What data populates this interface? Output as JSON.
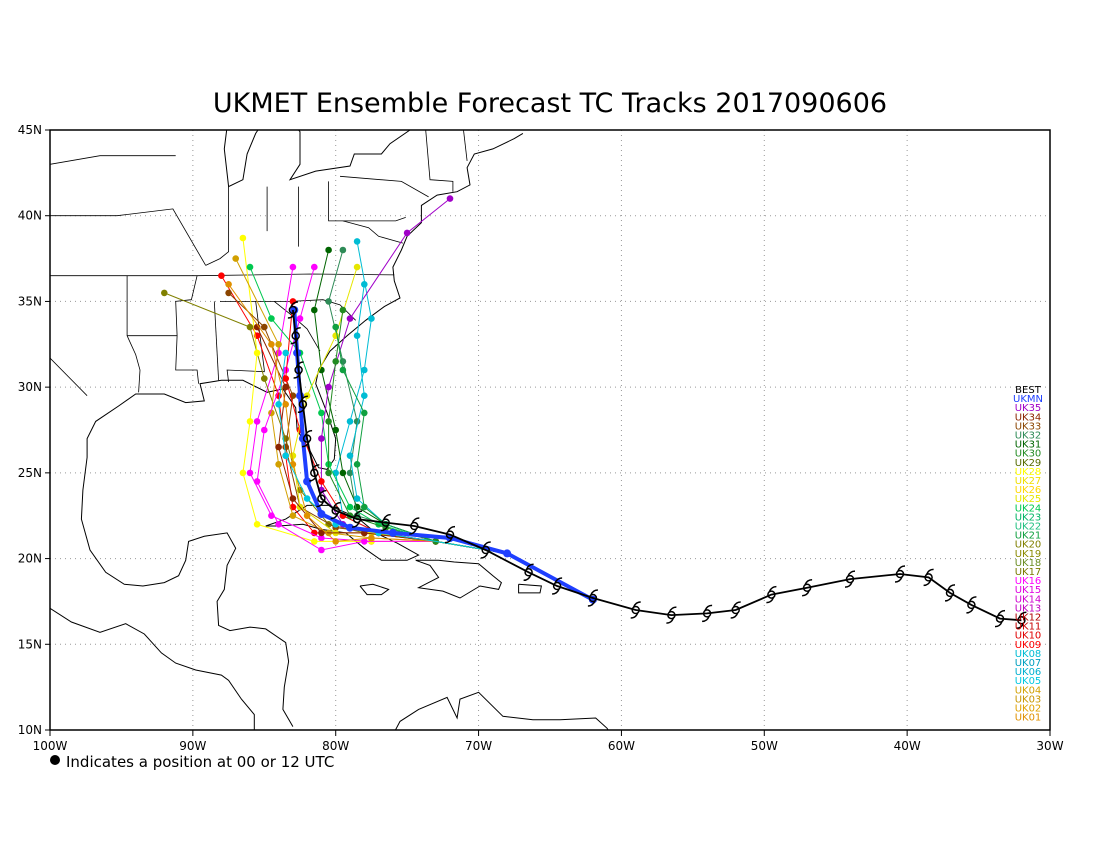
{
  "title": "UKMET Ensemble Forecast TC Tracks 2017090606",
  "footnote": "Indicates a position at 00 or 12 UTC",
  "map": {
    "lon_range": [
      -100,
      -30
    ],
    "lat_range": [
      10,
      45
    ],
    "lon_ticks": [
      {
        "value": -100,
        "label": "100W"
      },
      {
        "value": -90,
        "label": "90W"
      },
      {
        "value": -80,
        "label": "80W"
      },
      {
        "value": -70,
        "label": "70W"
      },
      {
        "value": -60,
        "label": "60W"
      },
      {
        "value": -50,
        "label": "50W"
      },
      {
        "value": -40,
        "label": "40W"
      },
      {
        "value": -30,
        "label": "30W"
      }
    ],
    "lat_ticks": [
      {
        "value": 10,
        "label": "10N"
      },
      {
        "value": 15,
        "label": "15N"
      },
      {
        "value": 20,
        "label": "20N"
      },
      {
        "value": 25,
        "label": "25N"
      },
      {
        "value": 30,
        "label": "30N"
      },
      {
        "value": 35,
        "label": "35N"
      },
      {
        "value": 40,
        "label": "40N"
      },
      {
        "value": 45,
        "label": "45N"
      }
    ],
    "grid": "dotted"
  },
  "legend": [
    {
      "label": "BEST",
      "color": "#000000"
    },
    {
      "label": "UKMN",
      "color": "#1f3fff"
    },
    {
      "label": "UK35",
      "color": "#a000c8"
    },
    {
      "label": "UK34",
      "color": "#8b2500"
    },
    {
      "label": "UK33",
      "color": "#8b4500"
    },
    {
      "label": "UK32",
      "color": "#2e8b57"
    },
    {
      "label": "UK31",
      "color": "#006400"
    },
    {
      "label": "UK30",
      "color": "#228b22"
    },
    {
      "label": "UK29",
      "color": "#556b00"
    },
    {
      "label": "UK28",
      "color": "#ffff00"
    },
    {
      "label": "UK27",
      "color": "#f0e000"
    },
    {
      "label": "UK26",
      "color": "#ffd700"
    },
    {
      "label": "UK25",
      "color": "#e6e600"
    },
    {
      "label": "UK24",
      "color": "#00c850"
    },
    {
      "label": "UK23",
      "color": "#00b464"
    },
    {
      "label": "UK22",
      "color": "#20c080"
    },
    {
      "label": "UK21",
      "color": "#10a040"
    },
    {
      "label": "UK20",
      "color": "#808000"
    },
    {
      "label": "UK19",
      "color": "#8a8a00"
    },
    {
      "label": "UK18",
      "color": "#6b8e23"
    },
    {
      "label": "UK17",
      "color": "#7a7a00"
    },
    {
      "label": "UK16",
      "color": "#ff00ff"
    },
    {
      "label": "UK15",
      "color": "#e000e0"
    },
    {
      "label": "UK14",
      "color": "#d000d0"
    },
    {
      "label": "UK13",
      "color": "#c000c0"
    },
    {
      "label": "UK12",
      "color": "#b00000"
    },
    {
      "label": "UK11",
      "color": "#c80000"
    },
    {
      "label": "UK10",
      "color": "#e00000"
    },
    {
      "label": "UK09",
      "color": "#ff0000"
    },
    {
      "label": "UK08",
      "color": "#00bcd4"
    },
    {
      "label": "UK07",
      "color": "#00a0c0"
    },
    {
      "label": "UK06",
      "color": "#00b0d0"
    },
    {
      "label": "UK05",
      "color": "#00c8e0"
    },
    {
      "label": "UK04",
      "color": "#d2a000"
    },
    {
      "label": "UK03",
      "color": "#c89600"
    },
    {
      "label": "UK02",
      "color": "#e0a000"
    },
    {
      "label": "UK01",
      "color": "#e09000"
    }
  ],
  "best_track": [
    [
      -32.0,
      16.4
    ],
    [
      -33.5,
      16.5
    ],
    [
      -35.5,
      17.3
    ],
    [
      -37.0,
      18.0
    ],
    [
      -38.5,
      18.9
    ],
    [
      -40.5,
      19.1
    ],
    [
      -44.0,
      18.8
    ],
    [
      -47.0,
      18.3
    ],
    [
      -49.5,
      17.9
    ],
    [
      -52.0,
      17.0
    ],
    [
      -54.0,
      16.8
    ],
    [
      -56.5,
      16.7
    ],
    [
      -59.0,
      17.0
    ],
    [
      -62.0,
      17.7
    ],
    [
      -64.5,
      18.4
    ],
    [
      -66.5,
      19.2
    ],
    [
      -69.5,
      20.5
    ],
    [
      -72.0,
      21.4
    ],
    [
      -74.5,
      21.9
    ],
    [
      -76.5,
      22.1
    ],
    [
      -78.5,
      22.3
    ],
    [
      -80.0,
      22.8
    ],
    [
      -81.0,
      23.5
    ],
    [
      -81.5,
      25.0
    ],
    [
      -82.0,
      27.0
    ],
    [
      -82.3,
      29.0
    ],
    [
      -82.6,
      31.0
    ],
    [
      -82.8,
      33.0
    ],
    [
      -83.0,
      34.5
    ]
  ],
  "ensemble": {
    "start": [
      -62.0,
      17.6
    ],
    "hub": [
      -68.0,
      20.3
    ],
    "branch": [
      -73.0,
      21.0
    ],
    "members": [
      {
        "color": "#ff0000",
        "track": [
          [
            -78.0,
            21.5
          ],
          [
            -81.5,
            21.5
          ],
          [
            -83.0,
            23.0
          ],
          [
            -83.5,
            26.0
          ],
          [
            -84.0,
            29.5
          ],
          [
            -85.5,
            33.0
          ],
          [
            -88.0,
            36.5
          ]
        ]
      },
      {
        "color": "#ff00ff",
        "track": [
          [
            -77.5,
            21.0
          ],
          [
            -81.0,
            21.2
          ],
          [
            -84.5,
            22.5
          ],
          [
            -86.0,
            25.0
          ],
          [
            -85.5,
            28.0
          ],
          [
            -84.0,
            32.0
          ],
          [
            -83.0,
            37.0
          ]
        ]
      },
      {
        "color": "#808000",
        "track": [
          [
            -78.0,
            21.5
          ],
          [
            -80.5,
            22.0
          ],
          [
            -82.5,
            24.0
          ],
          [
            -83.5,
            27.0
          ],
          [
            -85.0,
            30.5
          ],
          [
            -86.0,
            33.5
          ],
          [
            -92.0,
            35.5
          ]
        ]
      },
      {
        "color": "#ffff00",
        "track": [
          [
            -77.5,
            21.0
          ],
          [
            -81.5,
            21.0
          ],
          [
            -85.5,
            22.0
          ],
          [
            -86.5,
            25.0
          ],
          [
            -86.0,
            28.0
          ],
          [
            -85.5,
            32.0
          ],
          [
            -86.5,
            38.7
          ]
        ]
      },
      {
        "color": "#00bcd4",
        "track": [
          [
            -77.0,
            21.5
          ],
          [
            -79.5,
            22.5
          ],
          [
            -80.0,
            25.0
          ],
          [
            -79.0,
            28.0
          ],
          [
            -78.0,
            31.0
          ],
          [
            -77.5,
            34.0
          ],
          [
            -78.5,
            38.5
          ]
        ]
      },
      {
        "color": "#00c850",
        "track": [
          [
            -77.0,
            22.0
          ],
          [
            -79.0,
            23.0
          ],
          [
            -80.5,
            25.5
          ],
          [
            -81.0,
            28.5
          ],
          [
            -82.5,
            32.0
          ],
          [
            -84.5,
            34.0
          ],
          [
            -86.0,
            37.0
          ]
        ]
      },
      {
        "color": "#006400",
        "track": [
          [
            -76.5,
            22.0
          ],
          [
            -78.5,
            23.0
          ],
          [
            -79.5,
            25.0
          ],
          [
            -80.0,
            27.5
          ],
          [
            -81.0,
            31.0
          ],
          [
            -81.5,
            34.5
          ],
          [
            -80.5,
            38.0
          ]
        ]
      },
      {
        "color": "#8b4500",
        "track": [
          [
            -77.0,
            21.5
          ],
          [
            -80.0,
            21.8
          ],
          [
            -82.5,
            23.0
          ],
          [
            -83.5,
            26.5
          ],
          [
            -83.0,
            29.5
          ],
          [
            -85.0,
            33.5
          ],
          [
            -87.5,
            35.5
          ]
        ]
      },
      {
        "color": "#d2a000",
        "track": [
          [
            -77.5,
            21.2
          ],
          [
            -80.5,
            21.5
          ],
          [
            -83.0,
            22.5
          ],
          [
            -84.0,
            25.5
          ],
          [
            -84.5,
            28.5
          ],
          [
            -84.0,
            32.5
          ],
          [
            -87.0,
            37.5
          ]
        ]
      },
      {
        "color": "#a000c8",
        "track": [
          [
            -77.0,
            21.5
          ],
          [
            -79.5,
            22.0
          ],
          [
            -81.0,
            24.0
          ],
          [
            -81.0,
            27.0
          ],
          [
            -80.5,
            30.0
          ],
          [
            -79.0,
            34.0
          ],
          [
            -75.0,
            39.0
          ],
          [
            -72.0,
            41.0
          ]
        ]
      },
      {
        "color": "#ff00ff",
        "track": [
          [
            -78.0,
            21.0
          ],
          [
            -81.0,
            20.5
          ],
          [
            -84.0,
            22.0
          ],
          [
            -85.5,
            24.5
          ],
          [
            -85.0,
            27.5
          ],
          [
            -83.5,
            31.0
          ],
          [
            -82.5,
            34.0
          ],
          [
            -81.5,
            37.0
          ]
        ]
      },
      {
        "color": "#2e8b57",
        "track": [
          [
            -76.5,
            22.0
          ],
          [
            -78.5,
            22.5
          ],
          [
            -79.0,
            25.0
          ],
          [
            -78.5,
            28.0
          ],
          [
            -79.5,
            31.5
          ],
          [
            -80.5,
            35.0
          ],
          [
            -79.5,
            38.0
          ]
        ]
      },
      {
        "color": "#ff0000",
        "track": [
          [
            -77.0,
            21.5
          ],
          [
            -79.5,
            22.5
          ],
          [
            -81.0,
            24.5
          ],
          [
            -82.5,
            27.5
          ],
          [
            -83.5,
            30.5
          ],
          [
            -83.0,
            35.0
          ]
        ]
      },
      {
        "color": "#e6e600",
        "track": [
          [
            -77.5,
            21.5
          ],
          [
            -80.0,
            21.5
          ],
          [
            -82.5,
            23.0
          ],
          [
            -83.0,
            26.0
          ],
          [
            -82.0,
            29.5
          ],
          [
            -80.0,
            33.0
          ],
          [
            -78.5,
            37.0
          ]
        ]
      },
      {
        "color": "#00bcd4",
        "track": [
          [
            -76.5,
            22.0
          ],
          [
            -78.5,
            23.5
          ],
          [
            -79.0,
            26.0
          ],
          [
            -78.0,
            29.5
          ],
          [
            -78.5,
            33.0
          ],
          [
            -78.0,
            36.0
          ]
        ]
      },
      {
        "color": "#8b2500",
        "track": [
          [
            -78.0,
            21.5
          ],
          [
            -81.0,
            21.5
          ],
          [
            -83.0,
            23.5
          ],
          [
            -84.0,
            26.5
          ],
          [
            -83.5,
            30.0
          ],
          [
            -85.5,
            33.5
          ]
        ]
      },
      {
        "color": "#228b22",
        "track": [
          [
            -76.5,
            21.8
          ],
          [
            -79.0,
            22.5
          ],
          [
            -80.5,
            25.0
          ],
          [
            -80.5,
            28.0
          ],
          [
            -80.0,
            31.5
          ],
          [
            -79.5,
            34.5
          ]
        ]
      },
      {
        "color": "#e09000",
        "track": [
          [
            -77.5,
            21.2
          ],
          [
            -80.0,
            21.0
          ],
          [
            -82.0,
            22.5
          ],
          [
            -83.0,
            25.5
          ],
          [
            -83.5,
            29.0
          ],
          [
            -84.5,
            32.5
          ],
          [
            -87.5,
            36.0
          ]
        ]
      },
      {
        "color": "#10a040",
        "track": [
          [
            -76.5,
            22.0
          ],
          [
            -78.0,
            23.0
          ],
          [
            -78.5,
            25.5
          ],
          [
            -78.0,
            28.5
          ],
          [
            -79.5,
            31.0
          ],
          [
            -80.0,
            33.5
          ]
        ]
      },
      {
        "color": "#00c8e0",
        "track": [
          [
            -77.0,
            21.5
          ],
          [
            -80.0,
            22.0
          ],
          [
            -82.0,
            23.5
          ],
          [
            -83.5,
            26.0
          ],
          [
            -84.0,
            29.0
          ],
          [
            -83.5,
            32.0
          ]
        ]
      }
    ]
  }
}
